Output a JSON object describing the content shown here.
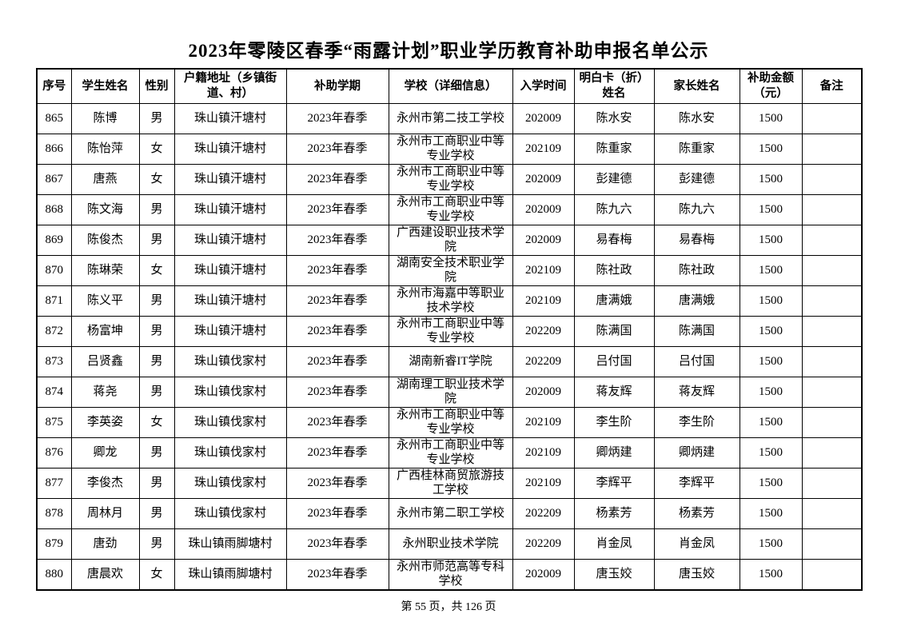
{
  "page": {
    "title": "2023年零陵区春季“雨露计划”职业学历教育补助申报名单公示",
    "footer": "第 55 页，共 126 页"
  },
  "table": {
    "headers": [
      "序号",
      "学生姓名",
      "性别",
      "户籍地址（乡镇街道、村）",
      "补助学期",
      "学校（详细信息）",
      "入学时间",
      "明白卡（折）姓名",
      "家长姓名",
      "补助金额（元）",
      "备注"
    ],
    "rows": [
      [
        "865",
        "陈博",
        "男",
        "珠山镇汗塘村",
        "2023年春季",
        "永州市第二技工学校",
        "202009",
        "陈水安",
        "陈水安",
        "1500",
        ""
      ],
      [
        "866",
        "陈怡萍",
        "女",
        "珠山镇汗塘村",
        "2023年春季",
        "永州市工商职业中等专业学校",
        "202109",
        "陈重家",
        "陈重家",
        "1500",
        ""
      ],
      [
        "867",
        "唐燕",
        "女",
        "珠山镇汗塘村",
        "2023年春季",
        "永州市工商职业中等专业学校",
        "202009",
        "彭建德",
        "彭建德",
        "1500",
        ""
      ],
      [
        "868",
        "陈文海",
        "男",
        "珠山镇汗塘村",
        "2023年春季",
        "永州市工商职业中等专业学校",
        "202009",
        "陈九六",
        "陈九六",
        "1500",
        ""
      ],
      [
        "869",
        "陈俊杰",
        "男",
        "珠山镇汗塘村",
        "2023年春季",
        "广西建设职业技术学院",
        "202009",
        "易春梅",
        "易春梅",
        "1500",
        ""
      ],
      [
        "870",
        "陈琳荣",
        "女",
        "珠山镇汗塘村",
        "2023年春季",
        "湖南安全技术职业学院",
        "202109",
        "陈社政",
        "陈社政",
        "1500",
        ""
      ],
      [
        "871",
        "陈义平",
        "男",
        "珠山镇汗塘村",
        "2023年春季",
        "永州市海嘉中等职业技术学校",
        "202109",
        "唐满娥",
        "唐满娥",
        "1500",
        ""
      ],
      [
        "872",
        "杨富坤",
        "男",
        "珠山镇汗塘村",
        "2023年春季",
        "永州市工商职业中等专业学校",
        "202209",
        "陈满国",
        "陈满国",
        "1500",
        ""
      ],
      [
        "873",
        "吕贤鑫",
        "男",
        "珠山镇伐家村",
        "2023年春季",
        "湖南新睿IT学院",
        "202209",
        "吕付国",
        "吕付国",
        "1500",
        ""
      ],
      [
        "874",
        "蒋尧",
        "男",
        "珠山镇伐家村",
        "2023年春季",
        "湖南理工职业技术学院",
        "202009",
        "蒋友辉",
        "蒋友辉",
        "1500",
        ""
      ],
      [
        "875",
        "李英姿",
        "女",
        "珠山镇伐家村",
        "2023年春季",
        "永州市工商职业中等专业学校",
        "202109",
        "李生阶",
        "李生阶",
        "1500",
        ""
      ],
      [
        "876",
        "卿龙",
        "男",
        "珠山镇伐家村",
        "2023年春季",
        "永州市工商职业中等专业学校",
        "202109",
        "卿炳建",
        "卿炳建",
        "1500",
        ""
      ],
      [
        "877",
        "李俊杰",
        "男",
        "珠山镇伐家村",
        "2023年春季",
        "广西桂林商贸旅游技工学校",
        "202109",
        "李辉平",
        "李辉平",
        "1500",
        ""
      ],
      [
        "878",
        "周林月",
        "男",
        "珠山镇伐家村",
        "2023年春季",
        "永州市第二职工学校",
        "202209",
        "杨素芳",
        "杨素芳",
        "1500",
        ""
      ],
      [
        "879",
        "唐劲",
        "男",
        "珠山镇雨脚塘村",
        "2023年春季",
        "永州职业技术学院",
        "202209",
        "肖金凤",
        "肖金凤",
        "1500",
        ""
      ],
      [
        "880",
        "唐晨欢",
        "女",
        "珠山镇雨脚塘村",
        "2023年春季",
        "永州市师范高等专科学校",
        "202009",
        "唐玉姣",
        "唐玉姣",
        "1500",
        ""
      ]
    ]
  }
}
